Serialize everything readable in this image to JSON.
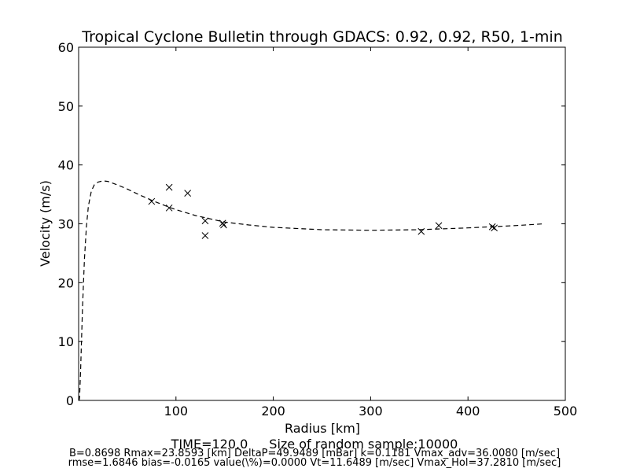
{
  "chart_data": {
    "type": "scatter",
    "title": "Tropical Cyclone Bulletin through GDACS: 0.92, 0.92, R50, 1-min",
    "xlabel": "Radius [km]",
    "ylabel": "Velocity (m/s)",
    "xlim": [
      0,
      500
    ],
    "ylim": [
      0,
      60
    ],
    "x_ticks": [
      100,
      200,
      300,
      400,
      500
    ],
    "y_ticks": [
      0,
      10,
      20,
      30,
      40,
      50,
      60
    ],
    "grid": false,
    "series": [
      {
        "style": "x-marker",
        "points": [
          [
            75,
            33.8
          ],
          [
            93,
            36.2
          ],
          [
            93,
            32.7
          ],
          [
            112,
            35.2
          ],
          [
            130,
            30.5
          ],
          [
            130,
            28.0
          ],
          [
            148,
            30.1
          ],
          [
            149,
            29.8
          ],
          [
            352,
            28.7
          ],
          [
            370,
            29.7
          ],
          [
            425,
            29.5
          ],
          [
            427,
            29.3
          ]
        ]
      },
      {
        "style": "dashed-line",
        "points": [
          [
            0.5,
            0
          ],
          [
            1,
            0.5
          ],
          [
            2,
            5
          ],
          [
            4,
            16
          ],
          [
            6,
            24
          ],
          [
            8,
            29.5
          ],
          [
            10,
            33
          ],
          [
            13,
            35.5
          ],
          [
            16,
            36.6
          ],
          [
            20,
            37.1
          ],
          [
            25,
            37.3
          ],
          [
            30,
            37.2
          ],
          [
            40,
            36.6
          ],
          [
            50,
            35.9
          ],
          [
            60,
            35.1
          ],
          [
            75,
            34.0
          ],
          [
            90,
            33.0
          ],
          [
            100,
            32.4
          ],
          [
            120,
            31.4
          ],
          [
            150,
            30.3
          ],
          [
            175,
            29.8
          ],
          [
            200,
            29.4
          ],
          [
            250,
            29.0
          ],
          [
            300,
            28.9
          ],
          [
            350,
            29.0
          ],
          [
            400,
            29.3
          ],
          [
            450,
            29.7
          ],
          [
            478,
            30.0
          ]
        ]
      }
    ]
  },
  "footer": {
    "time_label": "TIME=120.0",
    "sample_label": "Size of random sample:10000",
    "stats_line_1": "B=0.8698 Rmax=23.8593 [km]  DeltaP=49.9489 [mBar] k=0.1181 Vmax_adv=36.0080 [m/sec]",
    "stats_line_2": "rmse=1.6846 bias=-0.0165 value(\\%)=0.0000 Vt=11.6489 [m/sec] Vmax_Hol=37.2810 [m/sec]"
  }
}
